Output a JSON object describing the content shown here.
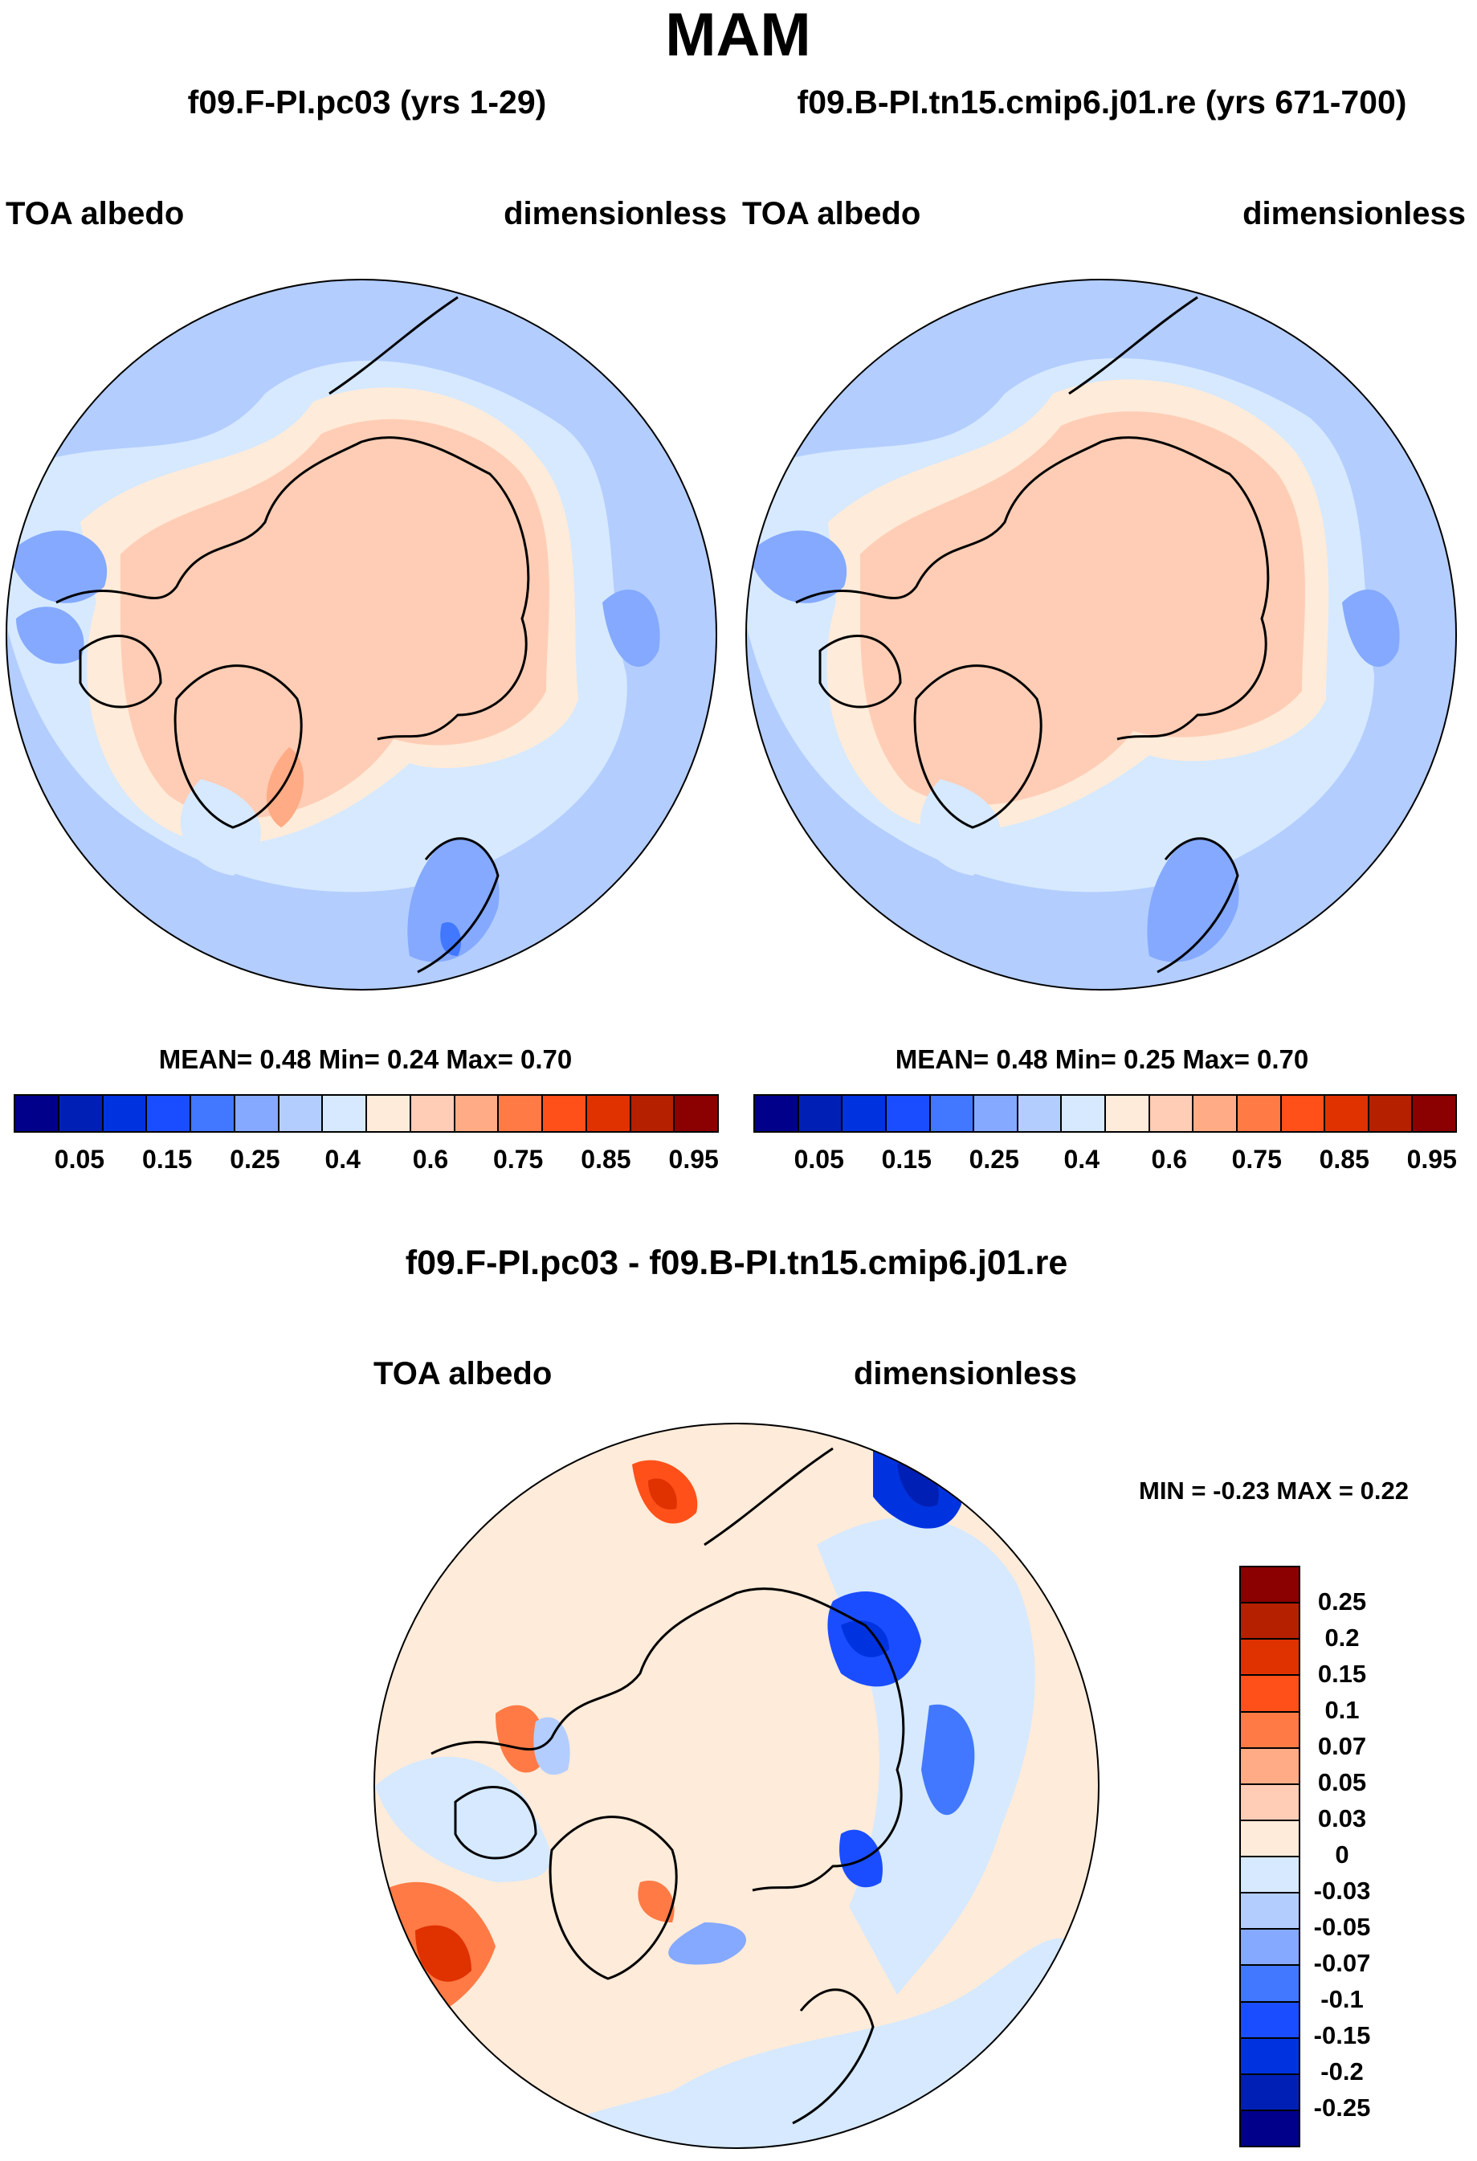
{
  "title": "MAM",
  "panels": [
    {
      "subtitle": "f09.F-PI.pc03 (yrs 1-29)",
      "left_label": "TOA albedo",
      "right_label": "dimensionless",
      "stats": "MEAN=   0.48  Min=   0.24  Max=   0.70"
    },
    {
      "subtitle": "f09.B-PI.tn15.cmip6.j01.re (yrs 671-700)",
      "left_label": "TOA albedo",
      "right_label": "dimensionless",
      "stats": "MEAN=   0.48  Min=   0.25  Max=   0.70"
    }
  ],
  "diff": {
    "title": "f09.F-PI.pc03 - f09.B-PI.tn15.cmip6.j01.re",
    "left_label": "TOA albedo",
    "right_label": "dimensionless",
    "stats": "MIN =  -0.23 MAX =   0.22"
  },
  "colorbar": {
    "colors": [
      "#00008b",
      "#0020b5",
      "#0033e0",
      "#1a4dff",
      "#4178ff",
      "#84a9ff",
      "#b3cdff",
      "#d6e9ff",
      "#ffebd9",
      "#ffcdb5",
      "#ffab85",
      "#ff7a45",
      "#ff5019",
      "#e03200",
      "#b52000",
      "#8b0000"
    ],
    "labels": [
      "0.05",
      "0.15",
      "0.25",
      "0.4",
      "0.6",
      "0.75",
      "0.85",
      "0.95"
    ]
  },
  "diff_colorbar": {
    "labels": [
      "0.25",
      "0.2",
      "0.15",
      "0.1",
      "0.07",
      "0.05",
      "0.03",
      "0",
      "-0.03",
      "-0.05",
      "-0.07",
      "-0.1",
      "-0.15",
      "-0.2",
      "-0.25"
    ]
  }
}
